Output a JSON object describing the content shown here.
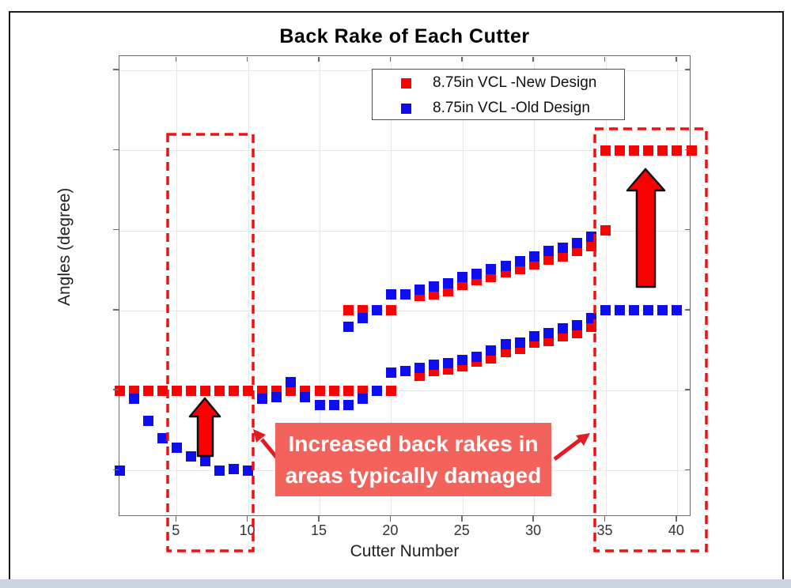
{
  "chart_data": {
    "type": "scatter",
    "title": "Back Rake of Each Cutter",
    "xlabel": "Cutter Number",
    "ylabel": "Angles (degree)",
    "xlim": [
      1,
      41
    ],
    "ylim": [
      -2.9,
      25.9
    ],
    "xticks": [
      5,
      10,
      15,
      20,
      25,
      30,
      35,
      40
    ],
    "ygrid_values": [
      0,
      5,
      10,
      15,
      20,
      25
    ],
    "y_tick_labels_shown": false,
    "grid": true,
    "legend_position": "top-center-inside",
    "series": [
      {
        "name": "8.75in VCL -New Design",
        "color": "#ff0000",
        "points": [
          [
            1,
            5
          ],
          [
            2,
            5
          ],
          [
            3,
            5
          ],
          [
            4,
            5
          ],
          [
            5,
            5
          ],
          [
            6,
            5
          ],
          [
            7,
            5
          ],
          [
            8,
            5
          ],
          [
            9,
            5
          ],
          [
            10,
            5
          ],
          [
            11,
            5
          ],
          [
            12,
            5
          ],
          [
            13,
            5
          ],
          [
            14,
            5
          ],
          [
            15,
            5
          ],
          [
            16,
            5
          ],
          [
            17,
            5
          ],
          [
            18,
            5
          ],
          [
            20,
            5
          ],
          [
            17,
            10
          ],
          [
            18,
            10
          ],
          [
            20,
            10
          ],
          [
            22,
            10.9
          ],
          [
            23,
            11
          ],
          [
            24,
            11.2
          ],
          [
            25,
            11.6
          ],
          [
            26,
            11.9
          ],
          [
            27,
            12.1
          ],
          [
            28,
            12.4
          ],
          [
            29,
            12.6
          ],
          [
            30,
            12.9
          ],
          [
            31,
            13.2
          ],
          [
            32,
            13.4
          ],
          [
            33,
            13.7
          ],
          [
            34,
            14
          ],
          [
            35,
            15
          ],
          [
            22,
            5.9
          ],
          [
            23,
            6.2
          ],
          [
            24,
            6.3
          ],
          [
            25,
            6.5
          ],
          [
            26,
            6.8
          ],
          [
            27,
            7
          ],
          [
            28,
            7.4
          ],
          [
            29,
            7.6
          ],
          [
            30,
            8
          ],
          [
            31,
            8.1
          ],
          [
            32,
            8.4
          ],
          [
            33,
            8.6
          ],
          [
            34,
            9
          ],
          [
            35,
            20
          ],
          [
            36,
            20
          ],
          [
            37,
            20
          ],
          [
            38,
            20
          ],
          [
            39,
            20
          ],
          [
            40,
            20
          ],
          [
            41,
            20
          ]
        ]
      },
      {
        "name": "8.75in VCL -Old Design",
        "color": "#0d0df0",
        "points": [
          [
            1,
            0
          ],
          [
            2,
            4.5
          ],
          [
            3,
            3.1
          ],
          [
            4,
            2
          ],
          [
            5,
            1.4
          ],
          [
            6,
            0.9
          ],
          [
            7,
            0.6
          ],
          [
            8,
            0
          ],
          [
            9,
            0.1
          ],
          [
            10,
            0
          ],
          [
            11,
            4.5
          ],
          [
            12,
            4.6
          ],
          [
            13,
            5.5
          ],
          [
            14,
            4.6
          ],
          [
            15,
            4.1
          ],
          [
            16,
            4.1
          ],
          [
            17,
            4.1
          ],
          [
            18,
            4.5
          ],
          [
            19,
            5
          ],
          [
            17,
            9
          ],
          [
            18,
            9.5
          ],
          [
            19,
            10
          ],
          [
            20,
            11
          ],
          [
            21,
            11
          ],
          [
            22,
            11.3
          ],
          [
            23,
            11.5
          ],
          [
            24,
            11.7
          ],
          [
            25,
            12.1
          ],
          [
            26,
            12.3
          ],
          [
            27,
            12.6
          ],
          [
            28,
            12.8
          ],
          [
            29,
            13.1
          ],
          [
            30,
            13.4
          ],
          [
            31,
            13.7
          ],
          [
            32,
            13.9
          ],
          [
            33,
            14.2
          ],
          [
            34,
            14.6
          ],
          [
            20,
            6.1
          ],
          [
            21,
            6.2
          ],
          [
            22,
            6.4
          ],
          [
            23,
            6.6
          ],
          [
            24,
            6.7
          ],
          [
            25,
            6.9
          ],
          [
            26,
            7.1
          ],
          [
            27,
            7.5
          ],
          [
            28,
            7.9
          ],
          [
            29,
            8
          ],
          [
            30,
            8.4
          ],
          [
            31,
            8.6
          ],
          [
            32,
            8.9
          ],
          [
            33,
            9.1
          ],
          [
            34,
            9.5
          ],
          [
            35,
            10
          ],
          [
            36,
            10
          ],
          [
            37,
            10
          ],
          [
            38,
            10
          ],
          [
            39,
            10
          ],
          [
            40,
            10
          ]
        ]
      }
    ],
    "annotations": {
      "callout_text_line1": "Increased back rakes in",
      "callout_text_line2": "areas typically damaged",
      "highlight_regions_cutters": [
        [
          5,
          10.5
        ],
        [
          34.3,
          42
        ]
      ]
    }
  },
  "colors": {
    "highlight_red": "#ee1111",
    "thin_arrow_red": "#e31b22",
    "block_arrow_fill": "#fb0000",
    "block_arrow_outline": "#0d0d0d",
    "annotation_bg": "#f4625c",
    "annotation_text": "#ffffff",
    "grid": "#e7e7e7",
    "spine": "#6a6a6a",
    "tick_label": "#333333",
    "bottom_strip": "#ccd3e0"
  }
}
